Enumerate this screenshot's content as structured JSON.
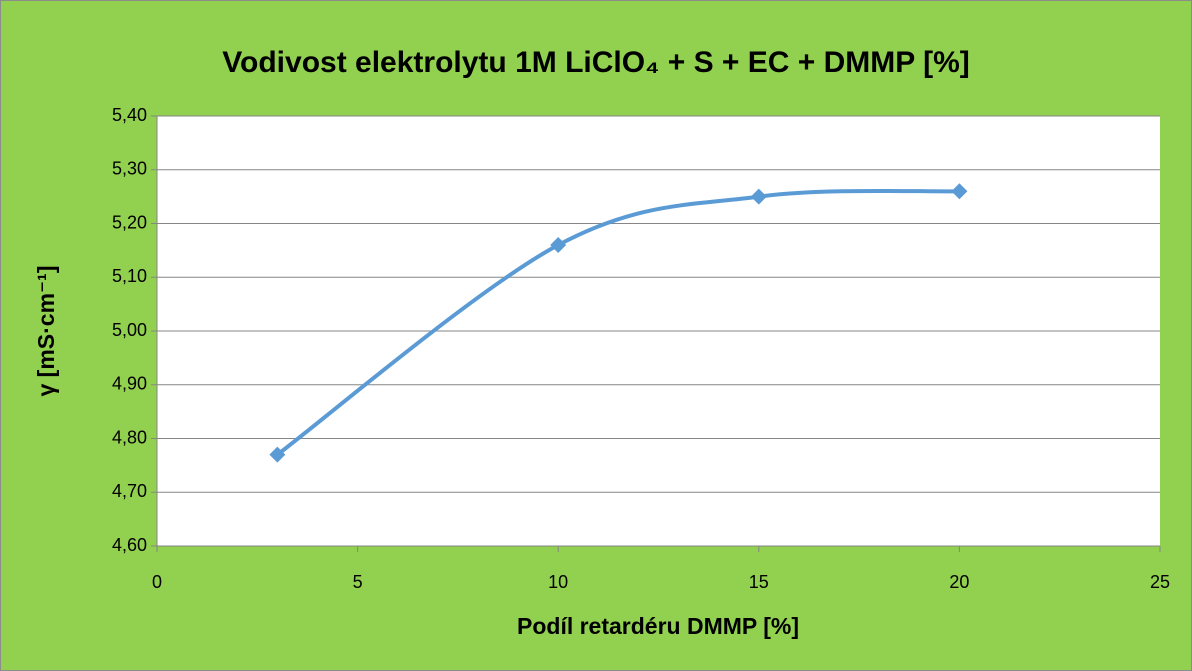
{
  "chart_data": {
    "type": "line",
    "title": "Vodivost elektrolytu 1M LiClO₄ + S + EC + DMMP [%]",
    "xlabel": "Podíl retardéru DMMP [%]",
    "ylabel": "γ [mS·cm⁻¹]",
    "x": [
      3,
      10,
      15,
      20
    ],
    "series": [
      {
        "name": "γ",
        "color": "#5b9bd5",
        "values": [
          4.77,
          5.16,
          5.25,
          5.26
        ]
      }
    ],
    "xlim": [
      0,
      25
    ],
    "xticks": [
      0,
      5,
      10,
      15,
      20,
      25
    ],
    "ylim": [
      4.6,
      5.4
    ],
    "yticks": [
      {
        "value": 4.6,
        "label": "4,60"
      },
      {
        "value": 4.7,
        "label": "4,70"
      },
      {
        "value": 4.8,
        "label": "4,80"
      },
      {
        "value": 4.9,
        "label": "4,90"
      },
      {
        "value": 5.0,
        "label": "5,00"
      },
      {
        "value": 5.1,
        "label": "5,10"
      },
      {
        "value": 5.2,
        "label": "5,20"
      },
      {
        "value": 5.3,
        "label": "5,30"
      },
      {
        "value": 5.4,
        "label": "5,40"
      }
    ],
    "grid": true,
    "smooth": true,
    "background": "#92d050"
  }
}
